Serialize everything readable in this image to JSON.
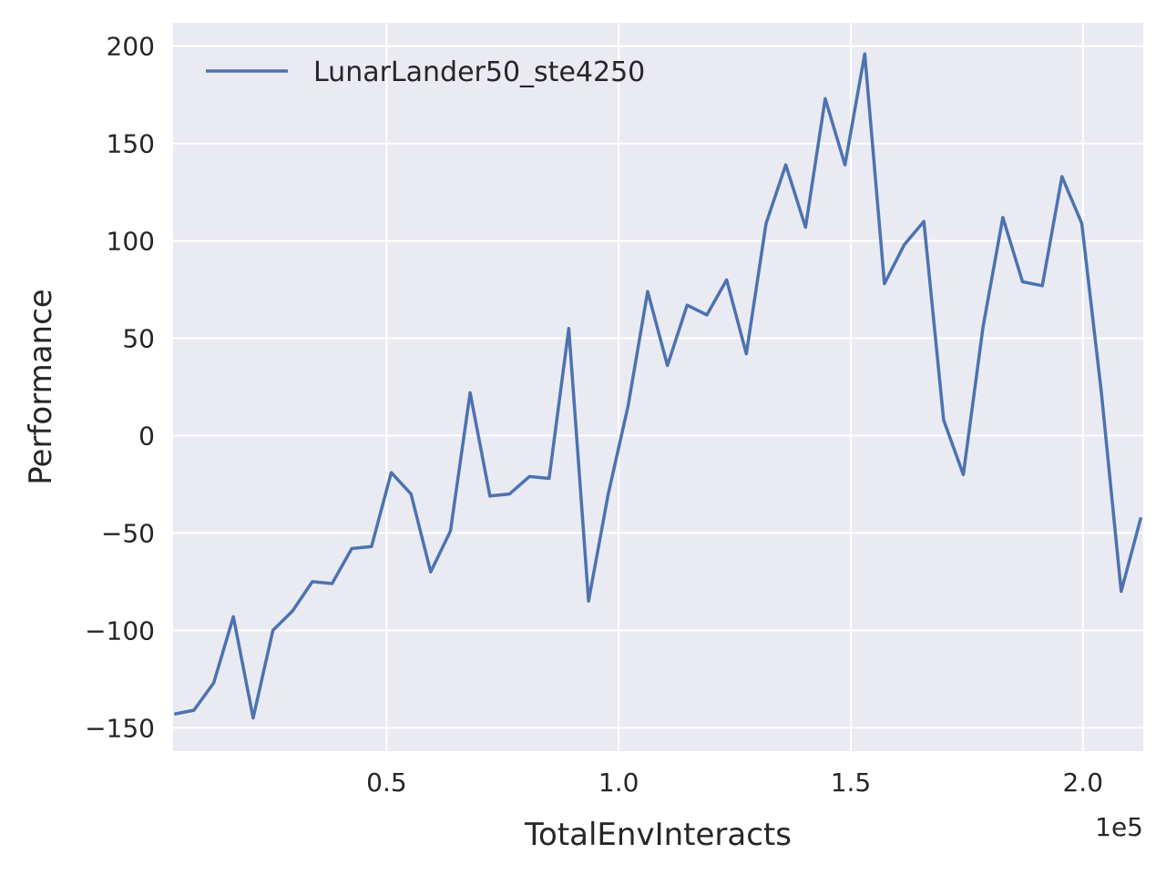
{
  "chart_data": {
    "type": "line",
    "xlabel": "TotalEnvInteracts",
    "ylabel": "Performance",
    "x_offset_label": "1e5",
    "x_multiplier": 100000,
    "xlim": [
      4000,
      213000
    ],
    "ylim": [
      -162,
      212
    ],
    "x_ticks": [
      50000,
      100000,
      150000,
      200000
    ],
    "x_tick_labels": [
      "0.5",
      "1.0",
      "1.5",
      "2.0"
    ],
    "y_ticks": [
      -150,
      -100,
      -50,
      0,
      50,
      100,
      150,
      200
    ],
    "y_tick_labels": [
      "−150",
      "−100",
      "−50",
      "0",
      "50",
      "100",
      "150",
      "200"
    ],
    "grid": true,
    "legend_position": "upper-left",
    "colors": {
      "background": "#eaeaf2",
      "grid": "#ffffff",
      "line": "#4c72b0"
    },
    "series": [
      {
        "name": "LunarLander50_ste4250",
        "x": [
          4250,
          8500,
          12750,
          17000,
          21250,
          25500,
          29750,
          34000,
          38250,
          42500,
          46750,
          51000,
          55250,
          59500,
          63750,
          68000,
          72250,
          76500,
          80750,
          85000,
          89250,
          93500,
          97750,
          102000,
          106250,
          110500,
          114750,
          119000,
          123250,
          127500,
          131750,
          136000,
          140250,
          144500,
          148750,
          153000,
          157250,
          161500,
          165750,
          170000,
          174250,
          178500,
          182750,
          187000,
          191250,
          195500,
          199750,
          204000,
          208250,
          212500
        ],
        "y": [
          -143,
          -141,
          -127,
          -93,
          -145,
          -100,
          -90,
          -75,
          -76,
          -58,
          -57,
          -19,
          -30,
          -70,
          -49,
          22,
          -31,
          -30,
          -21,
          -22,
          55,
          -85,
          -30,
          15,
          74,
          36,
          67,
          62,
          80,
          42,
          109,
          139,
          107,
          173,
          139,
          196,
          78,
          98,
          110,
          8,
          -20,
          56,
          112,
          79,
          77,
          133,
          109,
          22,
          -80,
          -42
        ]
      }
    ]
  }
}
